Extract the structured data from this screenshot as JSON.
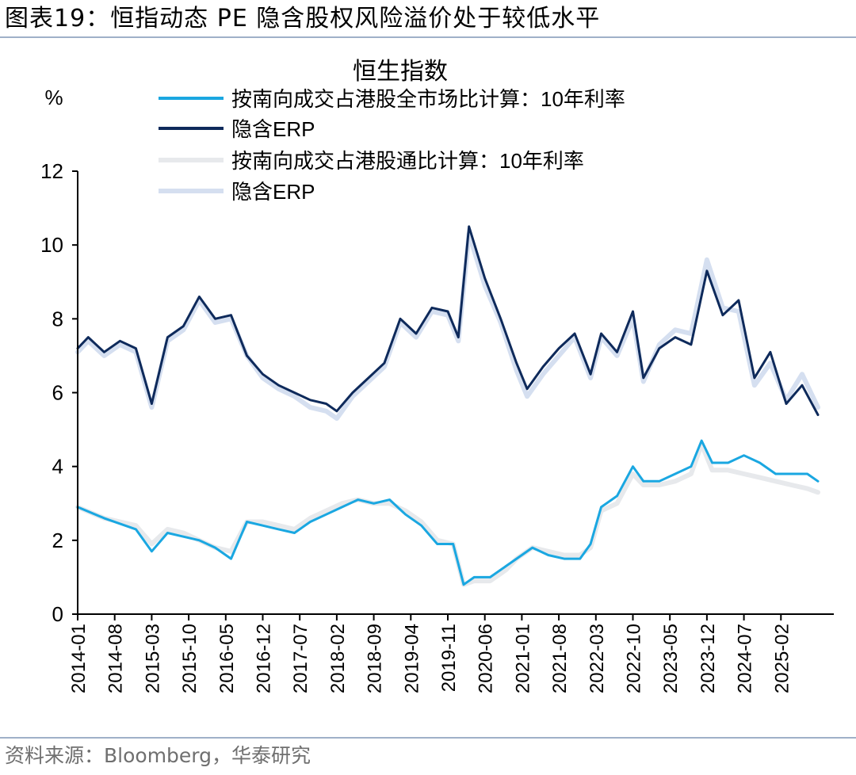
{
  "figure": {
    "label": "图表19：",
    "title": "恒指动态 PE 隐含股权风险溢价处于较低水平",
    "source": "资料来源：Bloomberg，华泰研究"
  },
  "chart_data": {
    "type": "line",
    "title": "恒生指数",
    "ylabel": "%",
    "ylim": [
      0,
      12
    ],
    "yticks": [
      0,
      2,
      4,
      6,
      8,
      10,
      12
    ],
    "xlim": [
      "2014-01",
      "2025-12"
    ],
    "xticks": [
      "2014-01",
      "2014-08",
      "2015-03",
      "2015-10",
      "2016-05",
      "2016-12",
      "2017-07",
      "2018-02",
      "2018-09",
      "2019-04",
      "2019-11",
      "2020-06",
      "2021-01",
      "2021-08",
      "2022-03",
      "2022-10",
      "2023-05",
      "2023-12",
      "2024-07",
      "2025-02"
    ],
    "grid": false,
    "legend_position": "top",
    "series": [
      {
        "name": "按南向成交占港股全市场比计算：10年利率",
        "color": "#1aa7e1",
        "line_width": 3,
        "x": [
          "2014-01",
          "2014-06",
          "2014-12",
          "2015-03",
          "2015-06",
          "2015-09",
          "2015-12",
          "2016-03",
          "2016-06",
          "2016-09",
          "2016-12",
          "2017-03",
          "2017-06",
          "2017-09",
          "2017-12",
          "2018-03",
          "2018-06",
          "2018-09",
          "2018-12",
          "2019-03",
          "2019-06",
          "2019-09",
          "2019-12",
          "2020-02",
          "2020-04",
          "2020-07",
          "2020-10",
          "2020-12",
          "2021-03",
          "2021-06",
          "2021-09",
          "2021-12",
          "2022-02",
          "2022-04",
          "2022-07",
          "2022-10",
          "2022-12",
          "2023-03",
          "2023-06",
          "2023-09",
          "2023-11",
          "2024-01",
          "2024-04",
          "2024-07",
          "2024-10",
          "2025-01",
          "2025-04",
          "2025-07",
          "2025-09"
        ],
        "y": [
          2.9,
          2.6,
          2.3,
          1.7,
          2.2,
          2.1,
          2.0,
          1.8,
          1.5,
          2.5,
          2.4,
          2.3,
          2.2,
          2.5,
          2.7,
          2.9,
          3.1,
          3.0,
          3.1,
          2.7,
          2.4,
          1.9,
          1.9,
          0.8,
          1.0,
          1.0,
          1.3,
          1.5,
          1.8,
          1.6,
          1.5,
          1.5,
          1.9,
          2.9,
          3.2,
          4.0,
          3.6,
          3.6,
          3.8,
          4.0,
          4.7,
          4.1,
          4.1,
          4.3,
          4.1,
          3.8,
          3.8,
          3.8,
          3.6
        ]
      },
      {
        "name": "隐含ERP",
        "color": "#0e2a5b",
        "line_width": 3,
        "x": [
          "2014-01",
          "2014-03",
          "2014-06",
          "2014-09",
          "2014-12",
          "2015-03",
          "2015-06",
          "2015-09",
          "2015-12",
          "2016-03",
          "2016-06",
          "2016-09",
          "2016-12",
          "2017-03",
          "2017-06",
          "2017-09",
          "2017-12",
          "2018-02",
          "2018-05",
          "2018-08",
          "2018-11",
          "2019-02",
          "2019-05",
          "2019-08",
          "2019-11",
          "2020-01",
          "2020-03",
          "2020-06",
          "2020-09",
          "2020-12",
          "2021-02",
          "2021-05",
          "2021-08",
          "2021-11",
          "2022-02",
          "2022-04",
          "2022-07",
          "2022-10",
          "2022-12",
          "2023-03",
          "2023-06",
          "2023-09",
          "2023-12",
          "2024-03",
          "2024-06",
          "2024-09",
          "2024-12",
          "2025-03",
          "2025-06",
          "2025-09"
        ],
        "y": [
          7.2,
          7.5,
          7.1,
          7.4,
          7.2,
          5.7,
          7.5,
          7.8,
          8.6,
          8.0,
          8.1,
          7.0,
          6.5,
          6.2,
          6.0,
          5.8,
          5.7,
          5.5,
          6.0,
          6.4,
          6.8,
          8.0,
          7.6,
          8.3,
          8.2,
          7.5,
          10.5,
          9.1,
          8.0,
          6.8,
          6.1,
          6.7,
          7.2,
          7.6,
          6.5,
          7.6,
          7.1,
          8.2,
          6.4,
          7.2,
          7.5,
          7.3,
          9.3,
          8.1,
          8.5,
          6.4,
          7.1,
          5.7,
          6.2,
          5.4
        ]
      },
      {
        "name": "按南向成交占港股通比计算：10年利率",
        "color": "#e7e9ec",
        "line_width": 6,
        "x": [
          "2014-01",
          "2014-06",
          "2014-12",
          "2015-03",
          "2015-06",
          "2015-09",
          "2015-12",
          "2016-03",
          "2016-06",
          "2016-09",
          "2016-12",
          "2017-03",
          "2017-06",
          "2017-09",
          "2017-12",
          "2018-03",
          "2018-06",
          "2018-09",
          "2018-12",
          "2019-03",
          "2019-06",
          "2019-09",
          "2019-12",
          "2020-02",
          "2020-04",
          "2020-07",
          "2020-10",
          "2020-12",
          "2021-03",
          "2021-06",
          "2021-09",
          "2021-12",
          "2022-02",
          "2022-04",
          "2022-07",
          "2022-10",
          "2022-12",
          "2023-03",
          "2023-06",
          "2023-09",
          "2023-11",
          "2024-01",
          "2024-04",
          "2024-07",
          "2024-10",
          "2025-01",
          "2025-04",
          "2025-07",
          "2025-09"
        ],
        "y": [
          2.9,
          2.6,
          2.4,
          1.9,
          2.3,
          2.2,
          2.0,
          1.8,
          1.7,
          2.5,
          2.5,
          2.4,
          2.3,
          2.6,
          2.8,
          3.0,
          3.1,
          3.0,
          3.0,
          2.8,
          2.5,
          2.0,
          1.9,
          0.8,
          0.9,
          0.9,
          1.2,
          1.5,
          1.8,
          1.7,
          1.6,
          1.6,
          1.8,
          2.8,
          3.0,
          3.8,
          3.5,
          3.5,
          3.6,
          3.8,
          4.6,
          3.9,
          3.9,
          3.8,
          3.7,
          3.6,
          3.5,
          3.4,
          3.3
        ]
      },
      {
        "name": "隐含ERP",
        "color": "#d5dff0",
        "line_width": 6,
        "x": [
          "2014-01",
          "2014-03",
          "2014-06",
          "2014-09",
          "2014-12",
          "2015-03",
          "2015-06",
          "2015-09",
          "2015-12",
          "2016-03",
          "2016-06",
          "2016-09",
          "2016-12",
          "2017-03",
          "2017-06",
          "2017-09",
          "2017-12",
          "2018-02",
          "2018-05",
          "2018-08",
          "2018-11",
          "2019-02",
          "2019-05",
          "2019-08",
          "2019-11",
          "2020-01",
          "2020-03",
          "2020-06",
          "2020-09",
          "2020-12",
          "2021-02",
          "2021-05",
          "2021-08",
          "2021-11",
          "2022-02",
          "2022-04",
          "2022-07",
          "2022-10",
          "2022-12",
          "2023-03",
          "2023-06",
          "2023-09",
          "2023-12",
          "2024-03",
          "2024-06",
          "2024-09",
          "2024-12",
          "2025-03",
          "2025-06",
          "2025-09"
        ],
        "y": [
          7.1,
          7.4,
          7.0,
          7.3,
          7.1,
          5.6,
          7.4,
          7.7,
          8.5,
          7.9,
          8.0,
          7.0,
          6.4,
          6.1,
          5.9,
          5.6,
          5.5,
          5.3,
          5.9,
          6.3,
          6.7,
          7.9,
          7.5,
          8.2,
          8.1,
          7.4,
          10.3,
          8.9,
          7.9,
          6.6,
          5.9,
          6.5,
          7.0,
          7.5,
          6.4,
          7.5,
          7.0,
          8.0,
          6.3,
          7.3,
          7.7,
          7.6,
          9.6,
          8.3,
          8.2,
          6.2,
          6.8,
          5.8,
          6.5,
          5.6
        ]
      }
    ]
  }
}
